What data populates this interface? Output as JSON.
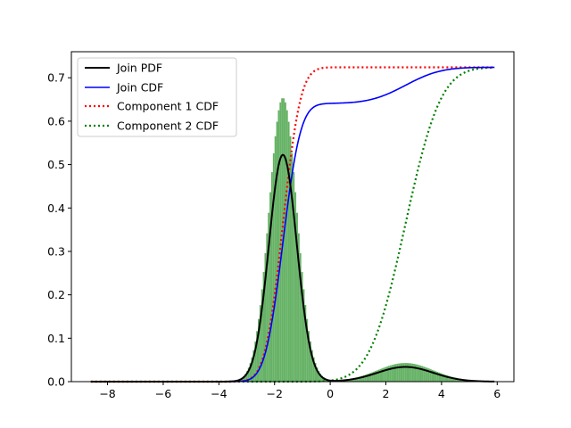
{
  "chart_data": {
    "type": "line",
    "title": "",
    "xlabel": "",
    "ylabel": "",
    "xlim": [
      -9.3,
      6.6
    ],
    "ylim": [
      0.0,
      0.76
    ],
    "x_ticks": [
      -8,
      -6,
      -4,
      -2,
      0,
      2,
      4,
      6
    ],
    "x_tick_labels": [
      "−8",
      "−6",
      "−4",
      "−2",
      "0",
      "2",
      "4",
      "6"
    ],
    "y_ticks": [
      0.0,
      0.1,
      0.2,
      0.3,
      0.4,
      0.5,
      0.6,
      0.7
    ],
    "y_tick_labels": [
      "0.0",
      "0.1",
      "0.2",
      "0.3",
      "0.4",
      "0.5",
      "0.6",
      "0.7"
    ],
    "grid": false,
    "legend_position": "top-left",
    "mixture": {
      "components": [
        {
          "mean": -1.7,
          "std": 0.5,
          "weight": 0.655
        },
        {
          "mean": 2.7,
          "std": 1.0,
          "weight": 0.085
        }
      ],
      "cdf_scale": 0.9785,
      "x_range": [
        -8.6,
        5.9
      ]
    },
    "histogram": {
      "bin_range": [
        -8.6,
        5.9
      ],
      "bin_width": 0.06,
      "density_scale": 1.25,
      "color": "#66b266"
    },
    "series": [
      {
        "name": "Join PDF",
        "kind": "pdf",
        "color": "#000000",
        "dash": "solid"
      },
      {
        "name": "Join CDF",
        "kind": "cdf",
        "color": "#0000ff",
        "dash": "solid"
      },
      {
        "name": "Component 1 CDF",
        "kind": "cdf_comp1",
        "color": "#ff0000",
        "dash": "dotted"
      },
      {
        "name": "Component 2 CDF",
        "kind": "cdf_comp2",
        "color": "#008000",
        "dash": "dotted"
      }
    ]
  }
}
